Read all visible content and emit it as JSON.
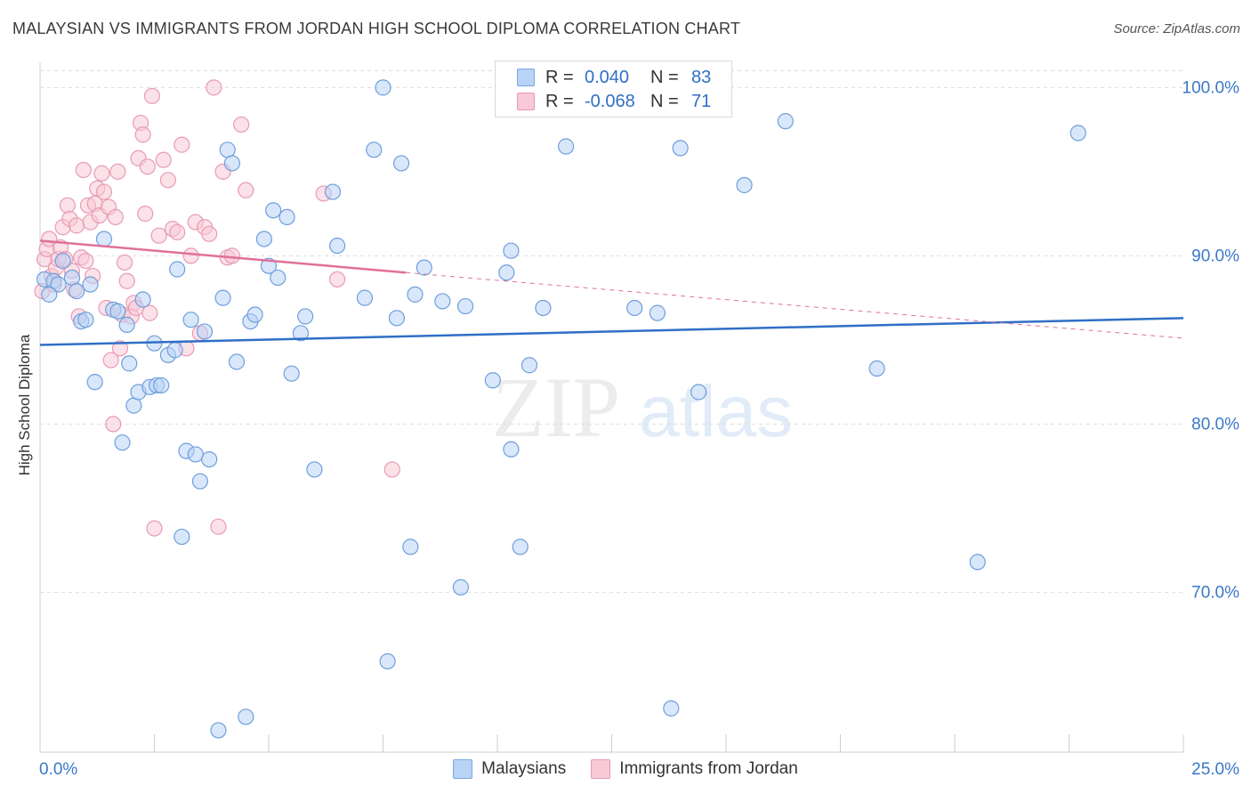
{
  "header": {
    "title": "MALAYSIAN VS IMMIGRANTS FROM JORDAN HIGH SCHOOL DIPLOMA CORRELATION CHART",
    "source": "Source: ZipAtlas.com"
  },
  "watermark": {
    "zip": "ZIP",
    "atlas": "atlas"
  },
  "legend": {
    "r_label": "R =",
    "n_label": "N =",
    "blue": {
      "r": "0.040",
      "n": "83"
    },
    "pink": {
      "r": "-0.068",
      "n": "71"
    }
  },
  "bottom_legend": {
    "blue": "Malaysians",
    "pink": "Immigrants from Jordan"
  },
  "colors": {
    "blue_fill": "#b8d3f5",
    "blue_stroke": "#6f9fdc",
    "blue_line": "#2f6fc6",
    "pink_fill": "#f8c9d6",
    "pink_stroke": "#e89bb3",
    "pink_line": "#e0709a",
    "tick_label": "#3a78c8",
    "grid": "#dddddd"
  },
  "chart_data": {
    "type": "scatter",
    "title": "MALAYSIAN VS IMMIGRANTS FROM JORDAN HIGH SCHOOL DIPLOMA CORRELATION CHART",
    "xlabel": "",
    "ylabel": "High School Diploma",
    "xlim": [
      0,
      25
    ],
    "ylim": [
      60.5,
      101.5
    ],
    "x_tick_labels": [
      {
        "v": 0,
        "t": "0.0%"
      },
      {
        "v": 25,
        "t": "25.0%"
      }
    ],
    "y_ticks": [
      {
        "v": 70,
        "t": "70.0%"
      },
      {
        "v": 80,
        "t": "80.0%"
      },
      {
        "v": 90,
        "t": "90.0%"
      },
      {
        "v": 100,
        "t": "100.0%"
      }
    ],
    "series": [
      {
        "name": "Malaysians",
        "r": 0.04,
        "n": 83,
        "trend": {
          "x0": 0,
          "y0": 84.7,
          "x1": 25,
          "y1": 86.3,
          "dashed_to": null
        },
        "points": [
          [
            0.1,
            88.6
          ],
          [
            0.3,
            88.5
          ],
          [
            0.4,
            88.3
          ],
          [
            0.5,
            89.7
          ],
          [
            0.7,
            88.7
          ],
          [
            0.8,
            87.9
          ],
          [
            0.9,
            86.1
          ],
          [
            1.0,
            86.2
          ],
          [
            1.1,
            88.3
          ],
          [
            1.2,
            82.5
          ],
          [
            1.4,
            91.0
          ],
          [
            1.6,
            86.8
          ],
          [
            1.7,
            86.7
          ],
          [
            1.8,
            78.9
          ],
          [
            1.9,
            85.9
          ],
          [
            1.95,
            83.6
          ],
          [
            2.05,
            81.1
          ],
          [
            2.15,
            81.9
          ],
          [
            2.25,
            87.4
          ],
          [
            2.4,
            82.2
          ],
          [
            2.5,
            84.8
          ],
          [
            2.55,
            82.3
          ],
          [
            2.65,
            82.3
          ],
          [
            2.8,
            84.1
          ],
          [
            2.95,
            84.4
          ],
          [
            3.0,
            89.2
          ],
          [
            3.1,
            73.3
          ],
          [
            3.2,
            78.4
          ],
          [
            3.3,
            86.2
          ],
          [
            3.4,
            78.2
          ],
          [
            3.5,
            76.6
          ],
          [
            3.6,
            85.5
          ],
          [
            3.7,
            77.9
          ],
          [
            3.9,
            61.8
          ],
          [
            4.0,
            87.5
          ],
          [
            4.1,
            96.3
          ],
          [
            4.2,
            95.5
          ],
          [
            4.3,
            83.7
          ],
          [
            4.5,
            62.6
          ],
          [
            4.6,
            86.1
          ],
          [
            4.7,
            86.5
          ],
          [
            4.9,
            91.0
          ],
          [
            5.0,
            89.4
          ],
          [
            5.1,
            92.7
          ],
          [
            5.2,
            88.7
          ],
          [
            5.4,
            92.3
          ],
          [
            5.5,
            83.0
          ],
          [
            5.7,
            85.4
          ],
          [
            5.8,
            86.4
          ],
          [
            6.0,
            77.3
          ],
          [
            6.4,
            93.8
          ],
          [
            6.5,
            90.6
          ],
          [
            7.1,
            87.5
          ],
          [
            7.3,
            96.3
          ],
          [
            7.5,
            100.0
          ],
          [
            7.6,
            65.9
          ],
          [
            7.8,
            86.3
          ],
          [
            7.9,
            95.5
          ],
          [
            8.1,
            72.7
          ],
          [
            8.2,
            87.7
          ],
          [
            8.4,
            89.3
          ],
          [
            8.8,
            87.3
          ],
          [
            9.2,
            70.3
          ],
          [
            9.3,
            87.0
          ],
          [
            9.9,
            82.6
          ],
          [
            10.2,
            89.0
          ],
          [
            10.3,
            78.5
          ],
          [
            10.3,
            90.3
          ],
          [
            10.5,
            72.7
          ],
          [
            10.7,
            83.5
          ],
          [
            11.0,
            86.9
          ],
          [
            11.5,
            96.5
          ],
          [
            13.0,
            86.9
          ],
          [
            13.5,
            86.6
          ],
          [
            13.8,
            63.1
          ],
          [
            14.0,
            96.4
          ],
          [
            14.4,
            81.9
          ],
          [
            15.4,
            94.2
          ],
          [
            16.3,
            98.0
          ],
          [
            18.3,
            83.3
          ],
          [
            20.5,
            71.8
          ],
          [
            22.7,
            97.3
          ],
          [
            0.2,
            87.7
          ]
        ]
      },
      {
        "name": "Immigrants from Jordan",
        "r": -0.068,
        "n": 71,
        "trend": {
          "x0": 0,
          "y0": 90.9,
          "x1": 8.0,
          "y1": 89.0,
          "dashed_to": {
            "x": 25,
            "y": 85.1
          }
        },
        "points": [
          [
            0.05,
            87.9
          ],
          [
            0.1,
            89.8
          ],
          [
            0.15,
            90.4
          ],
          [
            0.2,
            91.0
          ],
          [
            0.25,
            88.8
          ],
          [
            0.3,
            88.3
          ],
          [
            0.35,
            89.3
          ],
          [
            0.4,
            89.8
          ],
          [
            0.45,
            90.5
          ],
          [
            0.5,
            91.7
          ],
          [
            0.55,
            89.8
          ],
          [
            0.6,
            93.0
          ],
          [
            0.65,
            92.2
          ],
          [
            0.7,
            89.1
          ],
          [
            0.75,
            88.0
          ],
          [
            0.8,
            91.8
          ],
          [
            0.85,
            86.4
          ],
          [
            0.9,
            89.9
          ],
          [
            0.95,
            95.1
          ],
          [
            1.0,
            89.7
          ],
          [
            1.05,
            93.0
          ],
          [
            1.1,
            92.0
          ],
          [
            1.15,
            88.8
          ],
          [
            1.2,
            93.1
          ],
          [
            1.25,
            94.0
          ],
          [
            1.3,
            92.4
          ],
          [
            1.35,
            94.9
          ],
          [
            1.4,
            93.8
          ],
          [
            1.45,
            86.9
          ],
          [
            1.5,
            92.9
          ],
          [
            1.55,
            83.8
          ],
          [
            1.6,
            80.0
          ],
          [
            1.65,
            92.3
          ],
          [
            1.7,
            95.0
          ],
          [
            1.75,
            84.5
          ],
          [
            1.8,
            86.5
          ],
          [
            1.85,
            89.6
          ],
          [
            1.9,
            88.5
          ],
          [
            2.0,
            86.4
          ],
          [
            2.05,
            87.2
          ],
          [
            2.1,
            86.9
          ],
          [
            2.15,
            95.8
          ],
          [
            2.2,
            97.9
          ],
          [
            2.25,
            97.2
          ],
          [
            2.3,
            92.5
          ],
          [
            2.35,
            95.3
          ],
          [
            2.4,
            86.6
          ],
          [
            2.45,
            99.5
          ],
          [
            2.5,
            73.8
          ],
          [
            2.6,
            91.2
          ],
          [
            2.7,
            95.7
          ],
          [
            2.8,
            94.5
          ],
          [
            2.9,
            91.6
          ],
          [
            3.0,
            91.4
          ],
          [
            3.1,
            96.6
          ],
          [
            3.2,
            84.5
          ],
          [
            3.3,
            90.0
          ],
          [
            3.4,
            92.0
          ],
          [
            3.5,
            85.4
          ],
          [
            3.6,
            91.7
          ],
          [
            3.7,
            91.3
          ],
          [
            3.8,
            100.0
          ],
          [
            3.9,
            73.9
          ],
          [
            4.0,
            95.0
          ],
          [
            4.1,
            89.9
          ],
          [
            4.2,
            90.0
          ],
          [
            4.4,
            97.8
          ],
          [
            4.5,
            93.9
          ],
          [
            6.2,
            93.7
          ],
          [
            6.5,
            88.6
          ],
          [
            7.7,
            77.3
          ]
        ]
      }
    ]
  }
}
